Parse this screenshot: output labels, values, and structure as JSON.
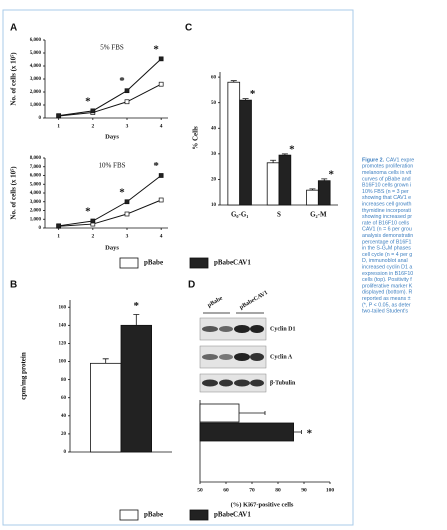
{
  "chart_data": [
    {
      "type": "line",
      "panel": "A",
      "title": "5% FBS",
      "xlabel": "Days",
      "ylabel": "No. of cells (x 10⁵)",
      "x": [
        1,
        2,
        3,
        4
      ],
      "xlim": [
        0.6,
        4.2
      ],
      "xticks": [
        1,
        2,
        3,
        4
      ],
      "ylim": [
        0,
        6000
      ],
      "yticks": [
        0,
        {
          "value": 1000,
          "label": "1,000"
        },
        {
          "value": 2000,
          "label": "2,000"
        },
        {
          "value": 3000,
          "label": "3,000"
        },
        {
          "value": 4000,
          "label": "4,000"
        },
        {
          "value": 5000,
          "label": "5,000"
        },
        {
          "value": 6000,
          "label": "6,000"
        }
      ],
      "series": [
        {
          "name": "pBabe",
          "color": "#ffffff",
          "values": [
            150,
            420,
            1250,
            2600
          ]
        },
        {
          "name": "pBabeCAV1",
          "color": "#222222",
          "values": [
            180,
            550,
            2100,
            4550
          ],
          "annotations": [
            null,
            "*",
            "*",
            "*"
          ]
        }
      ]
    },
    {
      "type": "line",
      "title": "10% FBS",
      "xlabel": "Days",
      "ylabel": "No. of cells (x 10⁵)",
      "x": [
        1,
        2,
        3,
        4
      ],
      "xlim": [
        0.6,
        4.2
      ],
      "xticks": [
        1,
        2,
        3,
        4
      ],
      "ylim": [
        0,
        8000
      ],
      "yticks": [
        0,
        {
          "value": 1000,
          "label": "1,000"
        },
        {
          "value": 2000,
          "label": "2,000"
        },
        {
          "value": 3000,
          "label": "3,000"
        },
        {
          "value": 4000,
          "label": "4,000"
        },
        {
          "value": 5000,
          "label": "5,000"
        },
        {
          "value": 6000,
          "label": "6,000"
        },
        {
          "value": 7000,
          "label": "7,000"
        },
        {
          "value": 8000,
          "label": "8,000"
        }
      ],
      "series": [
        {
          "name": "pBabe",
          "color": "#ffffff",
          "values": [
            200,
            450,
            1600,
            3200
          ]
        },
        {
          "name": "pBabeCAV1",
          "color": "#222222",
          "values": [
            250,
            800,
            3000,
            6000
          ],
          "annotations": [
            null,
            "*",
            "*",
            "*"
          ]
        }
      ]
    },
    {
      "type": "bar",
      "panel": "C",
      "ylabel": "% Cells",
      "categories": [
        "G₀-G₁",
        "S",
        "G₂-M"
      ],
      "ylim": [
        10,
        62
      ],
      "yticks": [
        10,
        20,
        30,
        40,
        50,
        60
      ],
      "series": [
        {
          "name": "pBabe",
          "color": "#ffffff",
          "values": [
            58,
            26.5,
            15.8
          ],
          "errors": [
            0.6,
            1,
            0.5
          ]
        },
        {
          "name": "pBabeCAV1",
          "color": "#222222",
          "values": [
            51,
            29.5,
            19.5
          ],
          "errors": [
            0.6,
            0.5,
            0.7
          ],
          "annotations": [
            "*",
            "*",
            "*"
          ]
        }
      ]
    },
    {
      "type": "bar",
      "panel": "B",
      "ylabel": "cpm/mg protein",
      "categories": [
        null
      ],
      "ylim": [
        0,
        168
      ],
      "yticks": [
        0,
        20,
        40,
        60,
        80,
        100,
        120,
        140,
        160
      ],
      "series": [
        {
          "name": "pBabe",
          "color": "#ffffff",
          "values": [
            98
          ],
          "errors": [
            5
          ]
        },
        {
          "name": "pBabeCAV1",
          "color": "#222222",
          "values": [
            140
          ],
          "errors": [
            12
          ],
          "annotations": [
            "*"
          ]
        }
      ]
    },
    {
      "type": "barh",
      "panel": "D",
      "xlabel": "(%) Ki67-positive cells",
      "categories": [
        null
      ],
      "xlim": [
        50,
        100
      ],
      "xticks": [
        50,
        60,
        70,
        80,
        90,
        100
      ],
      "series": [
        {
          "name": "pBabe",
          "color": "#ffffff",
          "values": [
            65
          ],
          "errors": [
            10
          ]
        },
        {
          "name": "pBabeCAV1",
          "color": "#222222",
          "values": [
            86
          ],
          "errors": [
            3
          ],
          "annotations": [
            "*"
          ]
        }
      ]
    }
  ],
  "blot": {
    "lanes": [
      "pBabe",
      "pBabeCAV1"
    ],
    "bands": [
      "Cyclin D1",
      "Cyclin A",
      "β-Tubulin"
    ]
  },
  "caption": {
    "label": "Figure 2.",
    "lines": [
      " CAV1 expre",
      "promotes proliferation",
      "melanoma cells in vit",
      "curves of pBabe and",
      "B16F10 cells grown i",
      "10% FBS (n = 3 per",
      "showing that CAV1 e",
      "increases cell growth",
      "thymidine incorporati",
      "showing increased pr",
      "rate of B16F10 cells",
      "CAV1 (n = 6 per grou",
      "analysis demonstratin",
      "percentage of B16F1",
      "in the S-G₂M phases",
      "cell cycle (n = 4 per g",
      "D, immunoblot anal",
      "increased cyclin D1 a",
      "expression in B16F10",
      "cells (top). Positivity f",
      "proliferative marker K",
      "displayed (bottom). R",
      "reported as means ±",
      "(*, P < 0.05, as deter",
      "two-tailed Student's"
    ]
  }
}
